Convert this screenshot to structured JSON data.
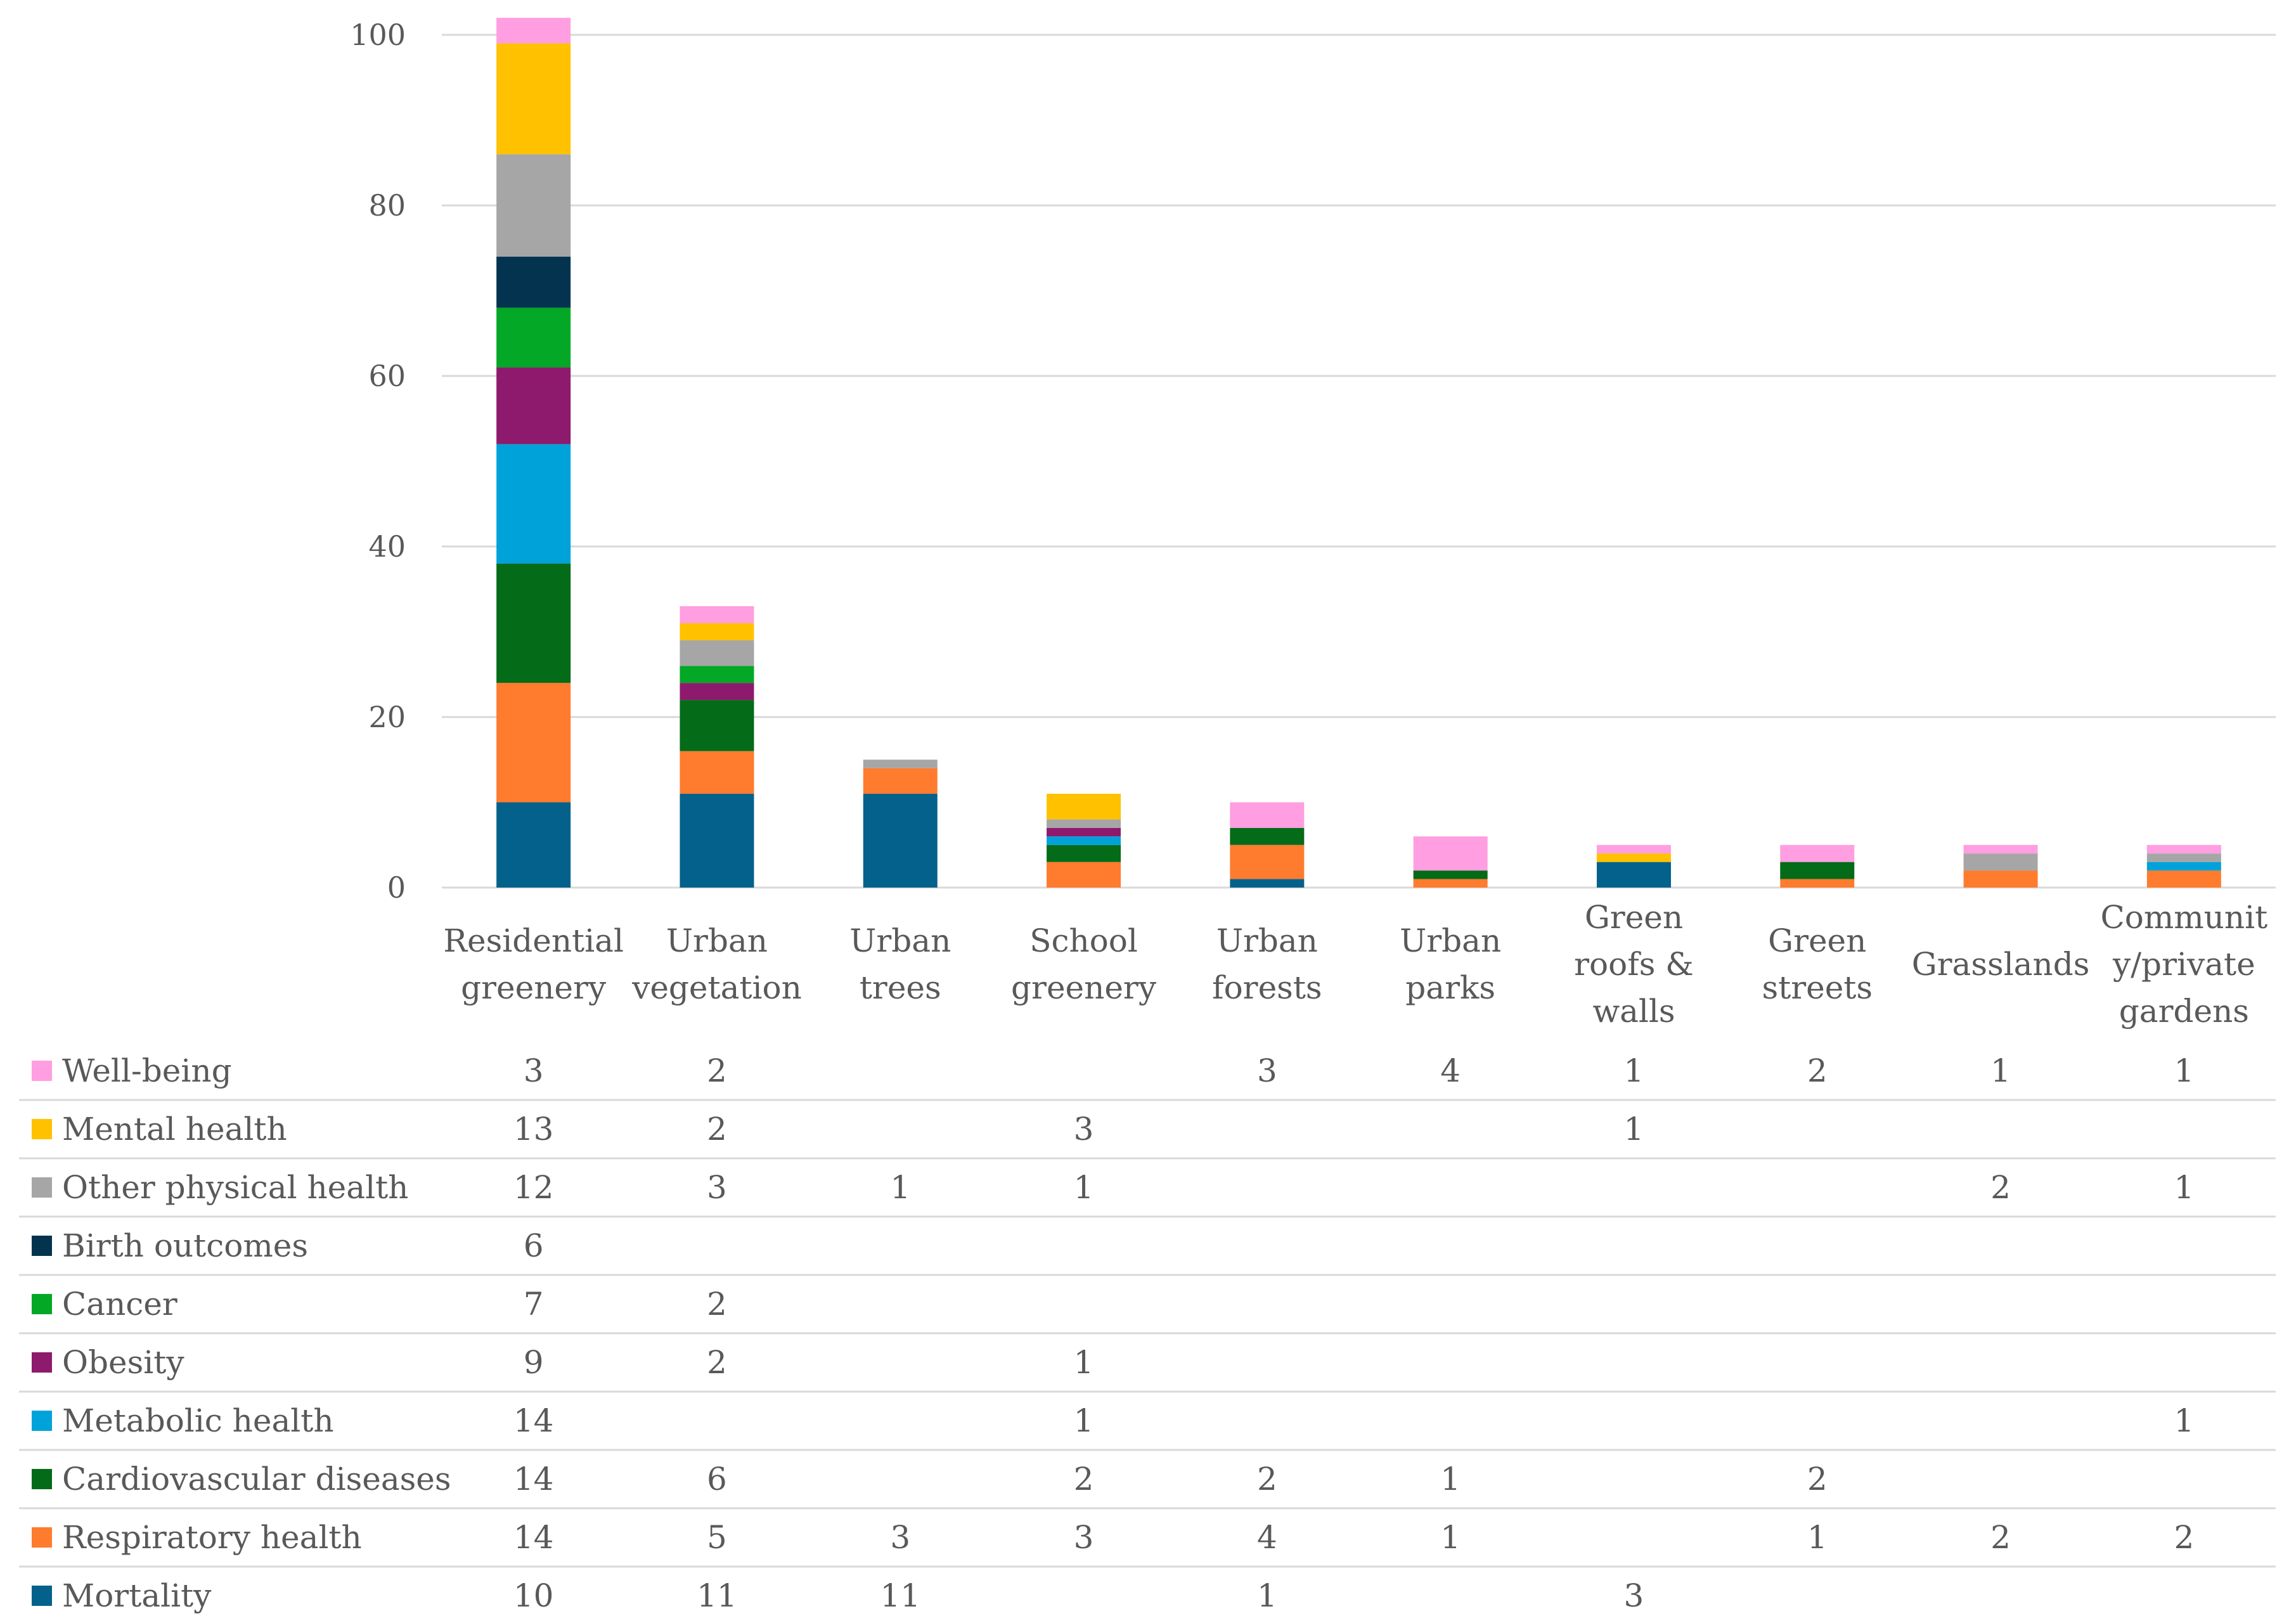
{
  "chart_data": {
    "type": "bar",
    "stacked": true,
    "title": "",
    "xlabel": "",
    "ylabel": "",
    "ylim": [
      0,
      100
    ],
    "yticks": [
      0,
      20,
      40,
      60,
      80,
      100
    ],
    "grid": true,
    "legend_position": "data-table-left",
    "categories": [
      [
        "Residential",
        "greenery"
      ],
      [
        "Urban",
        "vegetation"
      ],
      [
        "Urban",
        "trees"
      ],
      [
        "School",
        "greenery"
      ],
      [
        "Urban",
        "forests"
      ],
      [
        "Urban",
        "parks"
      ],
      [
        "Green",
        "roofs &",
        "walls"
      ],
      [
        "Green",
        "streets"
      ],
      [
        "Grasslands"
      ],
      [
        "Communit",
        "y/private",
        "gardens"
      ]
    ],
    "series": [
      {
        "name": "Mortality",
        "color": "#03618b",
        "values": [
          10,
          11,
          11,
          null,
          1,
          null,
          3,
          null,
          null,
          null
        ]
      },
      {
        "name": "Respiratory health",
        "color": "#ff7b2e",
        "values": [
          14,
          5,
          3,
          3,
          4,
          1,
          null,
          1,
          2,
          2
        ]
      },
      {
        "name": "Cardiovascular diseases",
        "color": "#046b18",
        "values": [
          14,
          6,
          null,
          2,
          2,
          1,
          null,
          2,
          null,
          null
        ]
      },
      {
        "name": "Metabolic health",
        "color": "#00a2da",
        "values": [
          14,
          null,
          null,
          1,
          null,
          null,
          null,
          null,
          null,
          1
        ]
      },
      {
        "name": "Obesity",
        "color": "#8e1a6e",
        "values": [
          9,
          2,
          null,
          1,
          null,
          null,
          null,
          null,
          null,
          null
        ]
      },
      {
        "name": "Cancer",
        "color": "#02a826",
        "values": [
          7,
          2,
          null,
          null,
          null,
          null,
          null,
          null,
          null,
          null
        ]
      },
      {
        "name": "Birth outcomes",
        "color": "#043350",
        "values": [
          6,
          null,
          null,
          null,
          null,
          null,
          null,
          null,
          null,
          null
        ]
      },
      {
        "name": "Other physical health",
        "color": "#a6a6a6",
        "values": [
          12,
          3,
          1,
          1,
          null,
          null,
          null,
          null,
          2,
          1
        ]
      },
      {
        "name": "Mental health",
        "color": "#ffc100",
        "values": [
          13,
          2,
          null,
          3,
          null,
          null,
          1,
          null,
          null,
          null
        ]
      },
      {
        "name": "Well-being",
        "color": "#ff9ee0",
        "values": [
          3,
          2,
          null,
          null,
          3,
          4,
          1,
          2,
          1,
          1
        ]
      }
    ]
  }
}
